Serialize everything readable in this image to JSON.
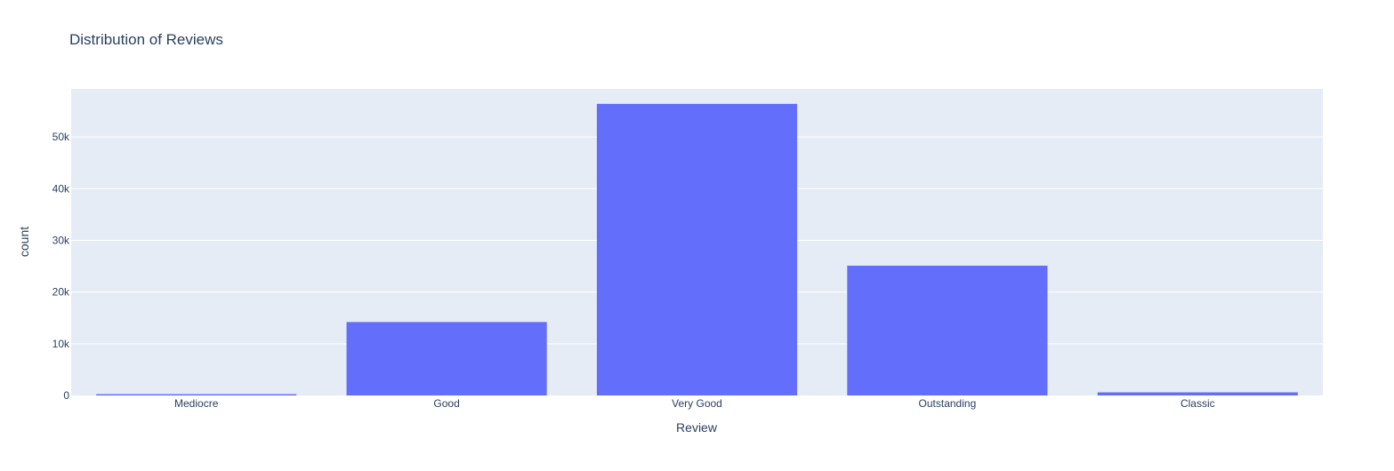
{
  "chart_data": {
    "type": "bar",
    "title": "Distribution of Reviews",
    "xlabel": "Review",
    "ylabel": "count",
    "categories": [
      "Mediocre",
      "Good",
      "Very Good",
      "Outstanding",
      "Classic"
    ],
    "values": [
      250,
      14200,
      56400,
      25100,
      600
    ],
    "ylim": [
      0,
      59300
    ],
    "yticks": [
      0,
      10000,
      20000,
      30000,
      40000,
      50000
    ],
    "ytick_labels": [
      "0",
      "10k",
      "20k",
      "30k",
      "40k",
      "50k"
    ],
    "grid": true,
    "legend": "none",
    "colors": {
      "bar": "#636efa",
      "plot_bg": "#e5ecf6",
      "grid": "#ffffff",
      "text": "#2a3f5f"
    }
  }
}
